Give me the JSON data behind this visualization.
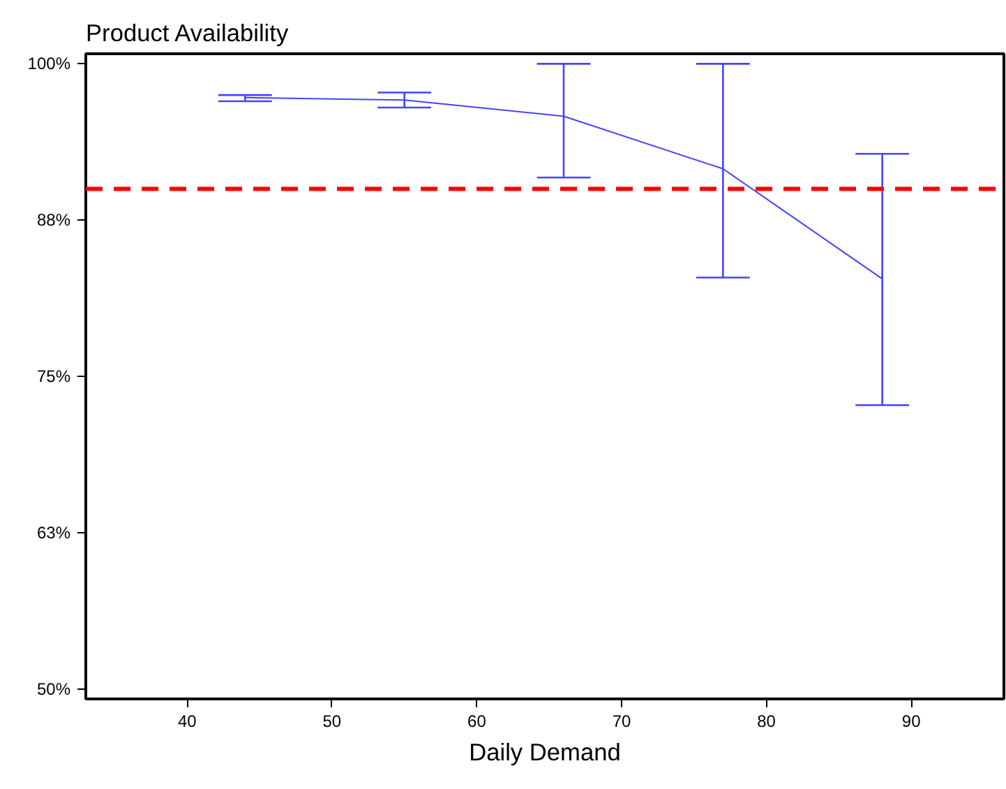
{
  "chart_data": {
    "type": "line",
    "title": "Product Availability",
    "xlabel": "Daily Demand",
    "x": [
      44,
      55,
      66,
      77,
      88
    ],
    "series": [
      {
        "color": "#4444ff",
        "values": [
          97.3,
          97.1,
          95.8,
          91.6,
          82.8
        ],
        "errors": [
          [
            97.0,
            97.5
          ],
          [
            96.5,
            97.7
          ],
          [
            90.9,
            100
          ],
          [
            82.9,
            100
          ],
          [
            72.7,
            92.8
          ]
        ]
      }
    ],
    "xlim": [
      33,
      96.4
    ],
    "xticks": [
      40,
      50,
      60,
      70,
      80,
      90
    ],
    "ylim": [
      49.2,
      100.8
    ],
    "yticks": [
      {
        "value": 50,
        "label": "50%"
      },
      {
        "value": 62.5,
        "label": "63%"
      },
      {
        "value": 75,
        "label": "75%"
      },
      {
        "value": 87.5,
        "label": "88%"
      },
      {
        "value": 100,
        "label": "100%"
      }
    ],
    "ref_lines": [
      {
        "axis": "y",
        "value": 90,
        "color": "#ff0000",
        "line_style": "dashed"
      }
    ],
    "grid": false,
    "marker": "none",
    "line_style": "solid"
  }
}
